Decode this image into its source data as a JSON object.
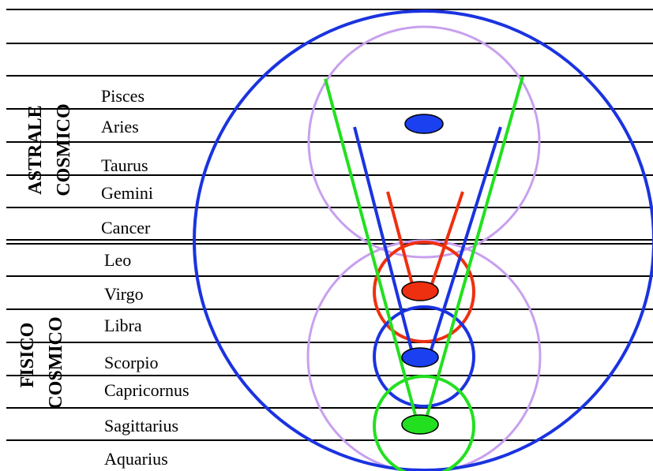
{
  "side_labels": {
    "upper": [
      "ASTRALE",
      "COSMICO"
    ],
    "lower": [
      "FISICO",
      "COSMICO"
    ]
  },
  "signs": [
    "Pisces",
    "Aries",
    "Taurus",
    "Gemini",
    "Cancer",
    "Leo",
    "Virgo",
    "Libra",
    "Scorpio",
    "Capricornus",
    "Sagittarius",
    "Aquarius"
  ]
}
